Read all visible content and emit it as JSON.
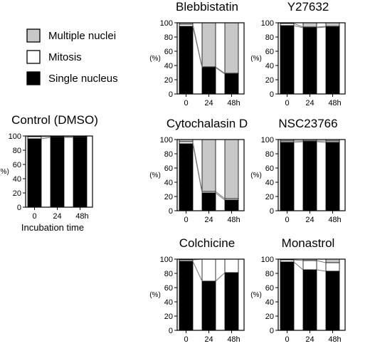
{
  "legend": [
    {
      "label": "Multiple nuclei",
      "color": "#c8c8c8"
    },
    {
      "label": "Mitosis",
      "color": "#ffffff"
    },
    {
      "label": "Single nucleus",
      "color": "#000000"
    }
  ],
  "colors": {
    "multiple": "#c8c8c8",
    "mitosis": "#ffffff",
    "single": "#000000",
    "axis": "#000000",
    "line": "#777777"
  },
  "x_axis_label": "Incubation time",
  "chart_data": [
    {
      "type": "bar",
      "title": "Control (DMSO)",
      "ylabel": "(%)",
      "ylim": [
        0,
        100
      ],
      "yticks": [
        0,
        20,
        40,
        60,
        80,
        100
      ],
      "categories": [
        "0",
        "24",
        "48h"
      ],
      "series": [
        {
          "name": "Single nucleus",
          "values": [
            96,
            98,
            98
          ]
        },
        {
          "name": "Mitosis",
          "values": [
            3,
            1,
            1
          ]
        },
        {
          "name": "Multiple nuclei",
          "values": [
            1,
            1,
            1
          ]
        }
      ]
    },
    {
      "type": "bar",
      "title": "Blebbistatin",
      "ylabel": "(%)",
      "ylim": [
        0,
        100
      ],
      "yticks": [
        0,
        20,
        40,
        60,
        80,
        100
      ],
      "categories": [
        "0",
        "24",
        "48h"
      ],
      "series": [
        {
          "name": "Single nucleus",
          "values": [
            95,
            37,
            28
          ]
        },
        {
          "name": "Mitosis",
          "values": [
            3,
            1,
            1
          ]
        },
        {
          "name": "Multiple nuclei",
          "values": [
            2,
            62,
            71
          ]
        }
      ]
    },
    {
      "type": "bar",
      "title": "Y27632",
      "ylabel": "(%)",
      "ylim": [
        0,
        100
      ],
      "yticks": [
        0,
        20,
        40,
        60,
        80,
        100
      ],
      "categories": [
        "0",
        "24",
        "48h"
      ],
      "series": [
        {
          "name": "Single nucleus",
          "values": [
            96,
            93,
            94
          ]
        },
        {
          "name": "Mitosis",
          "values": [
            3,
            1,
            1
          ]
        },
        {
          "name": "Multiple nuclei",
          "values": [
            1,
            6,
            5
          ]
        }
      ]
    },
    {
      "type": "bar",
      "title": "Cytochalasin D",
      "ylabel": "(%)",
      "ylim": [
        0,
        100
      ],
      "yticks": [
        0,
        20,
        40,
        60,
        80,
        100
      ],
      "categories": [
        "0",
        "24",
        "48h"
      ],
      "series": [
        {
          "name": "Single nucleus",
          "values": [
            94,
            25,
            15
          ]
        },
        {
          "name": "Mitosis",
          "values": [
            3,
            2,
            2
          ]
        },
        {
          "name": "Multiple nuclei",
          "values": [
            3,
            73,
            83
          ]
        }
      ]
    },
    {
      "type": "bar",
      "title": "NSC23766",
      "ylabel": "(%)",
      "ylim": [
        0,
        100
      ],
      "yticks": [
        0,
        20,
        40,
        60,
        80,
        100
      ],
      "categories": [
        "0",
        "24",
        "48h"
      ],
      "series": [
        {
          "name": "Single nucleus",
          "values": [
            96,
            97,
            96
          ]
        },
        {
          "name": "Mitosis",
          "values": [
            2,
            1,
            2
          ]
        },
        {
          "name": "Multiple nuclei",
          "values": [
            2,
            2,
            2
          ]
        }
      ]
    },
    {
      "type": "bar",
      "title": "Colchicine",
      "ylabel": "(%)",
      "ylim": [
        0,
        100
      ],
      "yticks": [
        0,
        20,
        40,
        60,
        80,
        100
      ],
      "categories": [
        "0",
        "24",
        "48h"
      ],
      "series": [
        {
          "name": "Single nucleus",
          "values": [
            97,
            69,
            81
          ]
        },
        {
          "name": "Mitosis",
          "values": [
            2,
            31,
            19
          ]
        },
        {
          "name": "Multiple nuclei",
          "values": [
            1,
            0,
            0
          ]
        }
      ]
    },
    {
      "type": "bar",
      "title": "Monastrol",
      "ylabel": "(%)",
      "ylim": [
        0,
        100
      ],
      "yticks": [
        0,
        20,
        40,
        60,
        80,
        100
      ],
      "categories": [
        "0",
        "24",
        "48h"
      ],
      "series": [
        {
          "name": "Single nucleus",
          "values": [
            96,
            85,
            83
          ]
        },
        {
          "name": "Mitosis",
          "values": [
            3,
            13,
            12
          ]
        },
        {
          "name": "Multiple nuclei",
          "values": [
            1,
            2,
            5
          ]
        }
      ]
    }
  ]
}
